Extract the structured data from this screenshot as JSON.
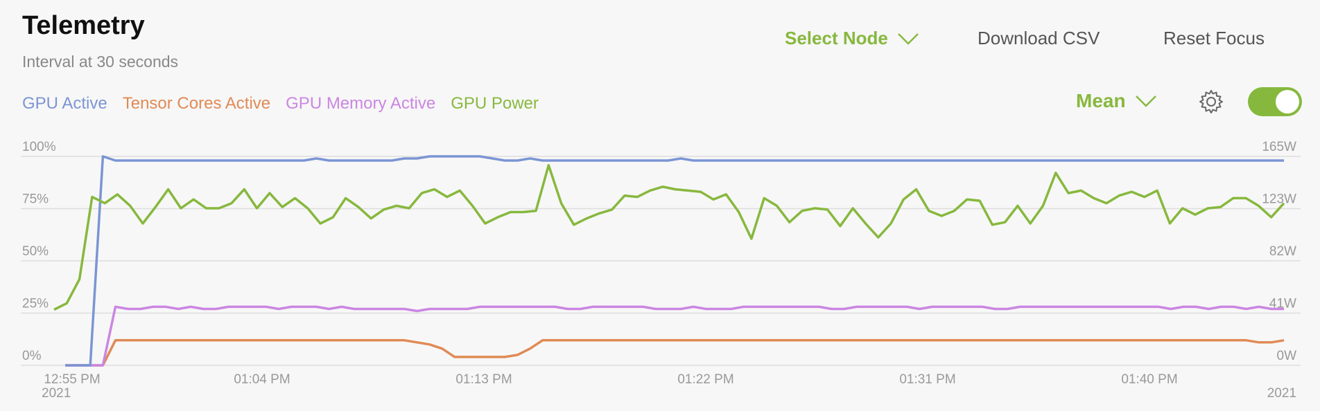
{
  "header": {
    "title": "Telemetry",
    "subtitle": "Interval at 30 seconds",
    "select_node": "Select Node",
    "download": "Download CSV",
    "reset": "Reset Focus"
  },
  "controls": {
    "aggregate": "Mean",
    "settings_icon": "gear-icon",
    "toggle_on": true
  },
  "colors": {
    "accent": "#87b83e",
    "gpu_active": "#7b95d4",
    "tensor": "#e08a55",
    "memory": "#cb86e2",
    "power": "#87b83e"
  },
  "chart_data": {
    "type": "line",
    "x_ticks": [
      "12:55 PM",
      "01:04 PM",
      "01:13 PM",
      "01:22 PM",
      "01:31 PM",
      "01:40 PM"
    ],
    "x_start_year": "2021",
    "x_end_year": "2021",
    "y_left_ticks": [
      "100%",
      "75%",
      "50%",
      "25%",
      "0%"
    ],
    "y_right_ticks": [
      "165W",
      "123W",
      "82W",
      "41W",
      "0W"
    ],
    "y_left_range": [
      0,
      100
    ],
    "y_right_range": [
      0,
      165
    ],
    "series": [
      {
        "name": "GPU Active",
        "color": "#7b95d4",
        "axis": "left",
        "values": [
          0,
          0,
          0,
          100,
          98,
          98,
          98,
          98,
          98,
          98,
          98,
          98,
          98,
          98,
          98,
          98,
          98,
          98,
          98,
          98,
          99,
          98,
          98,
          98,
          98,
          98,
          98,
          99,
          99,
          100,
          100,
          100,
          100,
          100,
          99,
          98,
          98,
          99,
          98,
          98,
          98,
          98,
          98,
          98,
          98,
          98,
          98,
          98,
          98,
          99,
          98,
          98,
          98,
          98,
          98,
          98,
          98,
          98,
          98,
          98,
          98,
          98,
          98,
          98,
          98,
          98,
          98,
          98,
          98,
          98,
          98,
          98,
          98,
          98,
          98,
          98,
          98,
          98,
          98,
          98,
          98,
          98,
          98,
          98,
          98,
          98,
          98,
          98,
          98,
          98,
          98,
          98,
          98,
          98,
          98,
          98,
          98,
          98
        ]
      },
      {
        "name": "Tensor Cores Active",
        "color": "#e08a55",
        "axis": "left",
        "values": [
          0,
          0,
          0,
          0,
          12,
          12,
          12,
          12,
          12,
          12,
          12,
          12,
          12,
          12,
          12,
          12,
          12,
          12,
          12,
          12,
          12,
          12,
          12,
          12,
          12,
          12,
          12,
          12,
          11,
          10,
          8,
          4,
          4,
          4,
          4,
          4,
          5,
          8,
          12,
          12,
          12,
          12,
          12,
          12,
          12,
          12,
          12,
          12,
          12,
          12,
          12,
          12,
          12,
          12,
          12,
          12,
          12,
          12,
          12,
          12,
          12,
          12,
          12,
          12,
          12,
          12,
          12,
          12,
          12,
          12,
          12,
          12,
          12,
          12,
          12,
          12,
          12,
          12,
          12,
          12,
          12,
          12,
          12,
          12,
          12,
          12,
          12,
          12,
          12,
          12,
          12,
          12,
          12,
          12,
          12,
          11,
          11,
          12
        ]
      },
      {
        "name": "GPU Memory Active",
        "color": "#cb86e2",
        "axis": "left",
        "values": [
          0,
          0,
          0,
          0,
          28,
          27,
          27,
          28,
          28,
          27,
          28,
          27,
          27,
          28,
          28,
          28,
          28,
          27,
          28,
          28,
          28,
          27,
          28,
          27,
          27,
          27,
          27,
          27,
          26,
          27,
          27,
          27,
          27,
          28,
          28,
          28,
          28,
          28,
          28,
          28,
          27,
          27,
          28,
          28,
          28,
          28,
          28,
          27,
          27,
          27,
          28,
          27,
          27,
          27,
          28,
          28,
          28,
          28,
          28,
          28,
          28,
          27,
          27,
          28,
          28,
          28,
          28,
          28,
          27,
          28,
          28,
          28,
          28,
          28,
          27,
          27,
          28,
          28,
          28,
          28,
          28,
          28,
          28,
          28,
          28,
          28,
          28,
          28,
          27,
          28,
          28,
          27,
          28,
          28,
          27,
          28,
          27,
          27
        ]
      },
      {
        "name": "GPU Power",
        "color": "#87b83e",
        "axis": "right",
        "values": [
          44,
          49,
          68,
          133,
          128,
          135,
          126,
          112,
          125,
          139,
          124,
          131,
          124,
          124,
          128,
          139,
          124,
          136,
          125,
          132,
          124,
          112,
          117,
          132,
          125,
          116,
          123,
          126,
          124,
          136,
          139,
          133,
          138,
          126,
          112,
          117,
          121,
          121,
          122,
          158,
          128,
          111,
          116,
          120,
          123,
          134,
          133,
          138,
          141,
          139,
          138,
          137,
          131,
          135,
          121,
          100,
          132,
          126,
          113,
          122,
          124,
          123,
          110,
          124,
          112,
          101,
          112,
          131,
          139,
          122,
          118,
          122,
          131,
          130,
          111,
          113,
          126,
          112,
          126,
          152,
          136,
          138,
          132,
          128,
          134,
          137,
          133,
          138,
          112,
          124,
          119,
          124,
          125,
          132,
          132,
          126,
          117,
          128
        ]
      }
    ]
  }
}
